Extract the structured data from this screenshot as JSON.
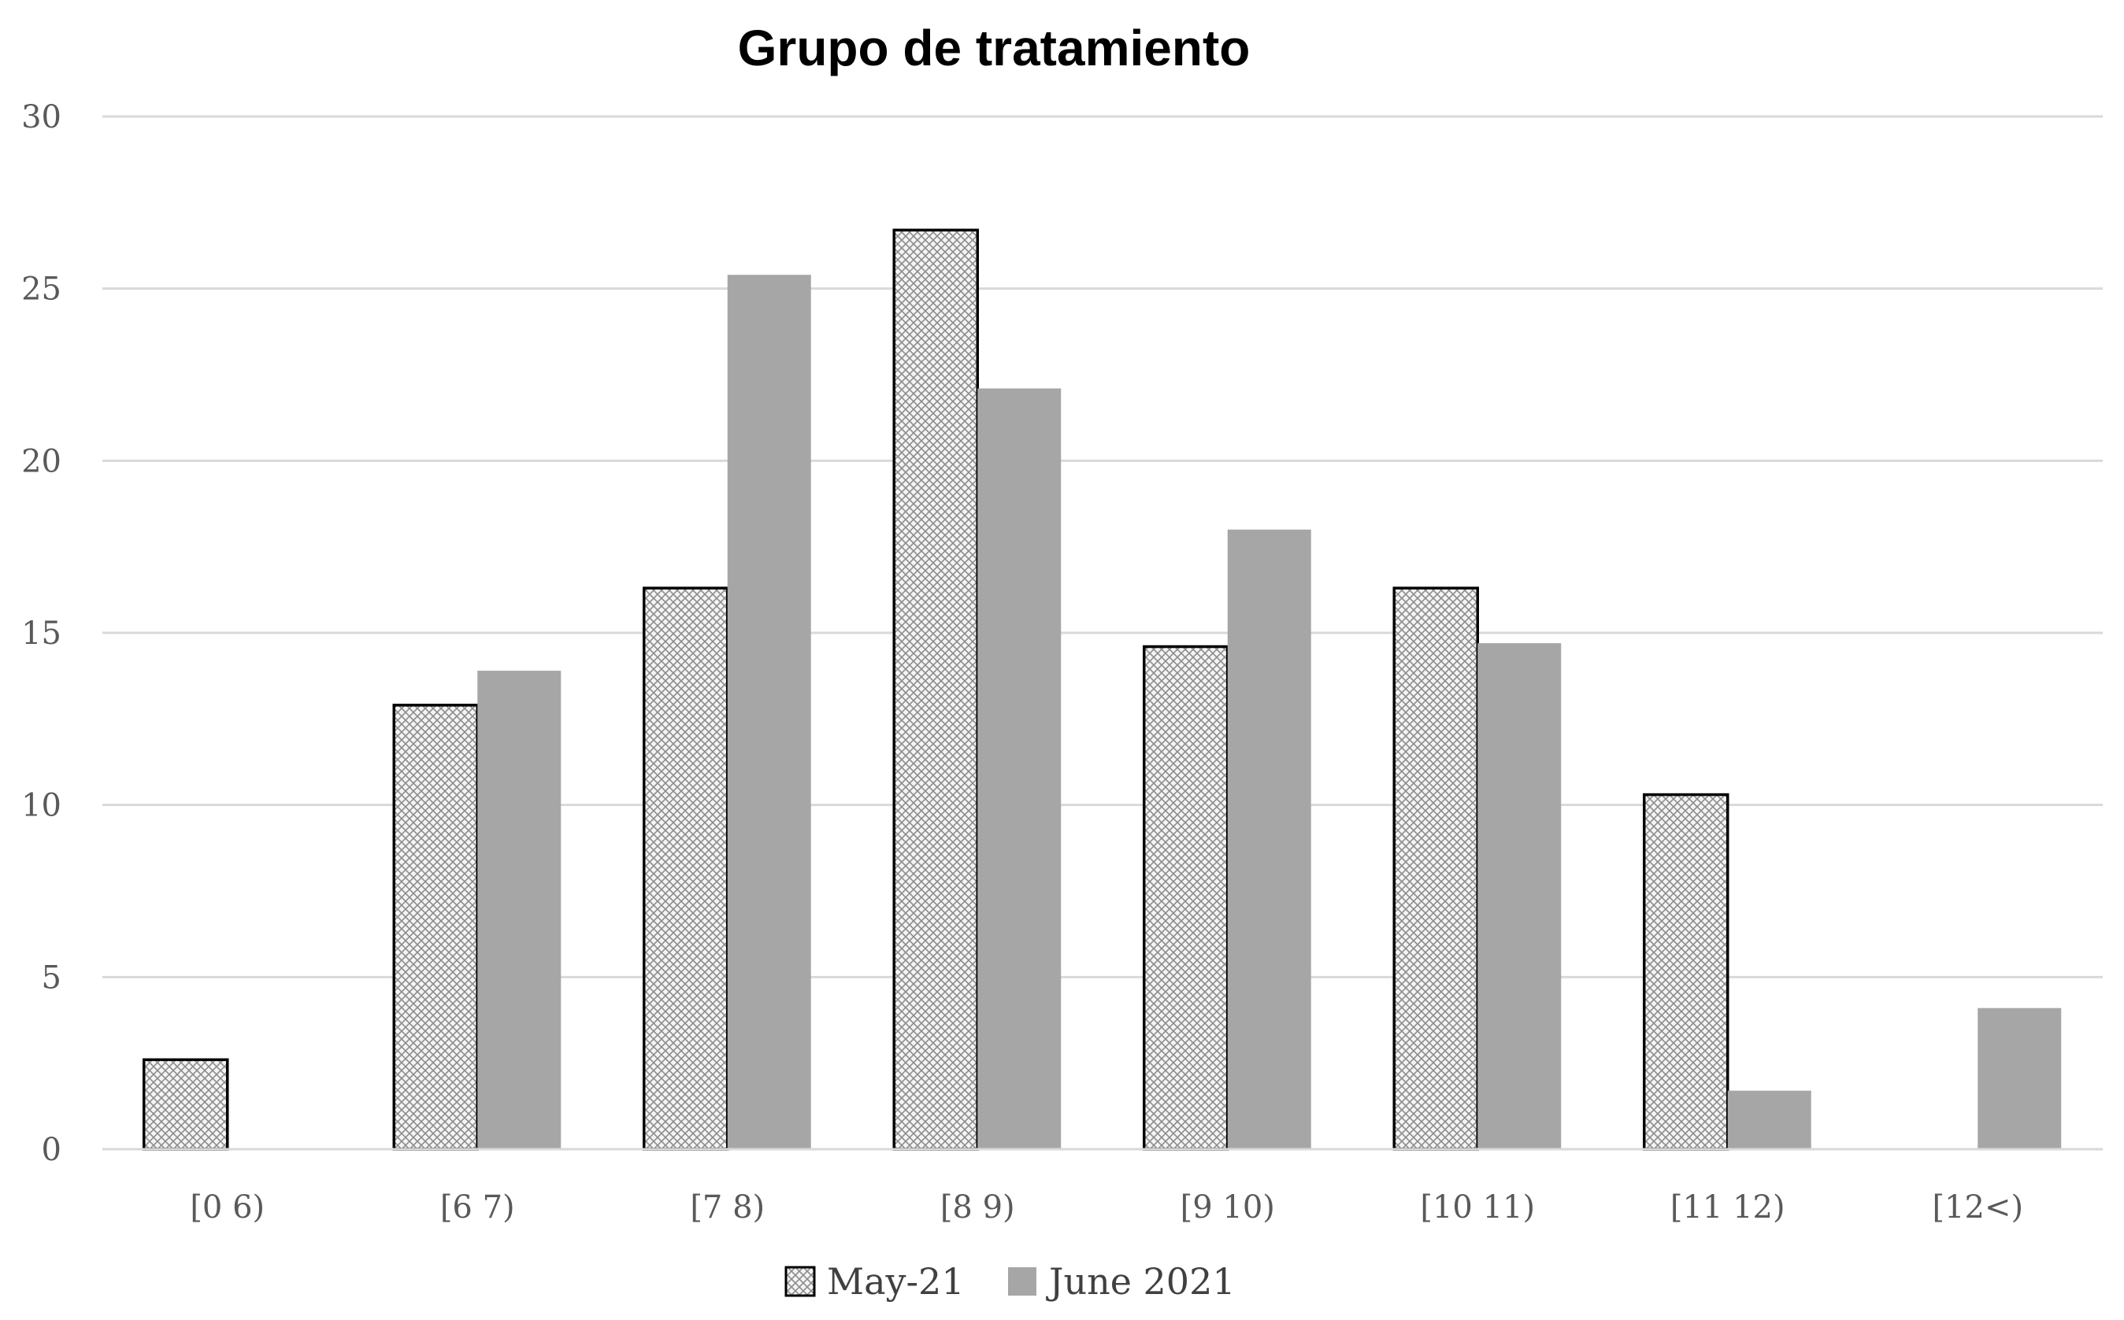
{
  "chart_data": {
    "type": "bar",
    "title": "Grupo de tratamiento",
    "xlabel": "",
    "ylabel": "",
    "categories": [
      "[0 6)",
      "[6 7)",
      "[7 8)",
      "[8 9)",
      "[9 10)",
      "[10 11)",
      "[11 12)",
      "[12<)"
    ],
    "series": [
      {
        "name": "May-21",
        "values": [
          2.6,
          12.9,
          16.3,
          26.7,
          14.6,
          16.3,
          10.3,
          0
        ],
        "pattern": "crosshatch",
        "color": "#ffffff",
        "stroke": "#000000"
      },
      {
        "name": "June 2021",
        "values": [
          0,
          13.9,
          25.4,
          22.1,
          18.0,
          14.7,
          1.7,
          4.1
        ],
        "pattern": "solid",
        "color": "#a6a6a6"
      }
    ],
    "ylim": [
      0,
      30
    ],
    "yticks": [
      "0",
      "5",
      "10",
      "15",
      "20",
      "25",
      "30"
    ],
    "grid": true,
    "legend_position": "bottom"
  }
}
